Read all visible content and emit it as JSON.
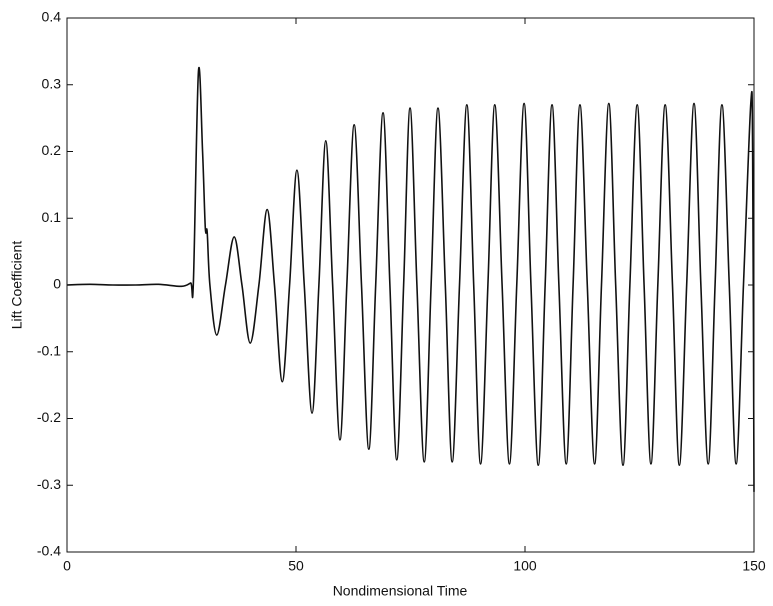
{
  "chart_data": {
    "type": "line",
    "x_label": "Nondimensional Time",
    "y_label": "Lift Coefficient",
    "xlim": [
      0,
      150
    ],
    "ylim": [
      -0.4,
      0.4
    ],
    "xticks": [
      0,
      50,
      100,
      150
    ],
    "yticks": [
      -0.4,
      -0.3,
      -0.2,
      -0.1,
      0,
      0.1,
      0.2,
      0.3,
      0.4
    ],
    "grid": false,
    "series": [
      {
        "color": "#111111",
        "x": [
          0,
          5,
          10,
          15,
          20,
          25,
          27,
          27.6,
          28.7,
          29.6,
          30.2,
          30.6,
          31.2,
          32.7,
          34.6,
          36.5,
          38.2,
          40,
          41.9,
          43.7,
          45.3,
          47,
          48.6,
          50.2,
          51.8,
          53.5,
          55,
          56.5,
          58,
          59.6,
          61.1,
          62.7,
          64.3,
          65.9,
          67.4,
          69,
          70.5,
          72,
          73.5,
          74.9,
          76.4,
          78,
          79.5,
          81,
          82.6,
          84.1,
          85.7,
          87.3,
          88.8,
          90.3,
          91.9,
          93.4,
          95,
          96.6,
          98.2,
          99.8,
          101.3,
          102.9,
          104.4,
          105.9,
          107.4,
          109,
          110.5,
          112,
          113.6,
          115.2,
          116.7,
          118.3,
          119.8,
          121.4,
          122.9,
          124.5,
          126,
          127.5,
          129,
          130.6,
          132.2,
          133.7,
          135.3,
          136.9,
          138.4,
          140,
          141.5,
          143,
          144.6,
          146.1,
          147.7,
          149.3,
          149.7,
          150
        ],
        "values": [
          0,
          0.001,
          0,
          0,
          0.001,
          -0.002,
          0.003,
          0.005,
          0.32,
          0.2,
          0.085,
          0.08,
          0,
          -0.075,
          0,
          0.072,
          0,
          -0.087,
          0,
          0.113,
          0,
          -0.145,
          0,
          0.172,
          0,
          -0.192,
          0,
          0.216,
          0,
          -0.232,
          0,
          0.24,
          0,
          -0.246,
          0,
          0.258,
          0,
          -0.262,
          0,
          0.265,
          0,
          -0.265,
          0,
          0.265,
          0,
          -0.265,
          0,
          0.27,
          0,
          -0.268,
          0,
          0.27,
          0,
          -0.268,
          0,
          0.272,
          0,
          -0.27,
          0,
          0.27,
          0,
          -0.268,
          0,
          0.27,
          0,
          -0.268,
          0,
          0.272,
          0,
          -0.27,
          0,
          0.27,
          0,
          -0.268,
          0,
          0.27,
          0,
          -0.27,
          0,
          0.272,
          0,
          -0.268,
          0,
          0.27,
          0,
          -0.268,
          0,
          0.272,
          0.2,
          -0.31
        ]
      }
    ]
  }
}
